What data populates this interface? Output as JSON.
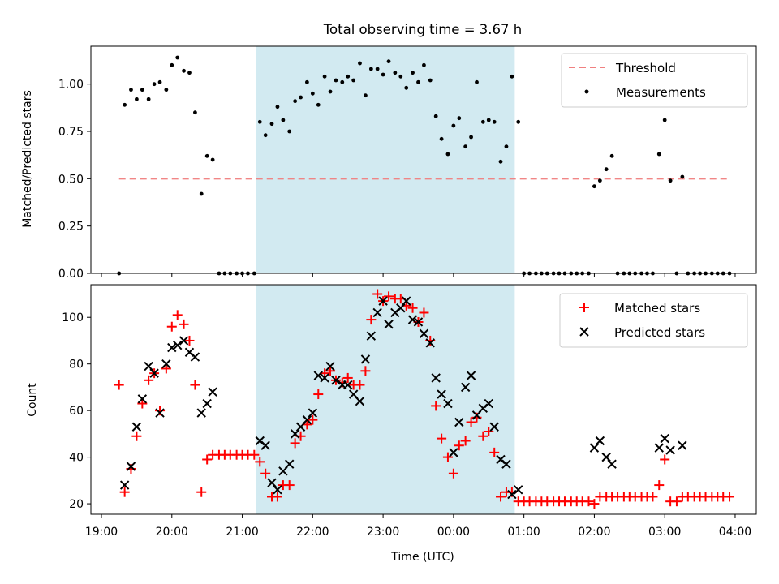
{
  "figure_title": "Total observing time = 3.67 h",
  "chart_data": [
    {
      "type": "scatter",
      "panel": "top",
      "ylabel": "Matched/Predicted stars",
      "ylim": [
        0,
        1.2
      ],
      "yticks": [
        "0.00",
        "0.25",
        "0.50",
        "0.75",
        "1.00"
      ],
      "ytick_values": [
        0,
        0.25,
        0.5,
        0.75,
        1.0
      ],
      "xlim": [
        18.85,
        28.3
      ],
      "shaded_interval": [
        21.2,
        24.87
      ],
      "shade_color": "#add8e6",
      "legend_position": "top-right",
      "threshold": {
        "name": "Threshold",
        "value": 0.5,
        "x_start": 19.25,
        "x_end": 27.9,
        "color": "#f08080"
      },
      "measurements_name": "Measurements",
      "measurements": [
        [
          19.25,
          0.0
        ],
        [
          19.33,
          0.89
        ],
        [
          19.42,
          0.97
        ],
        [
          19.5,
          0.92
        ],
        [
          19.58,
          0.97
        ],
        [
          19.67,
          0.92
        ],
        [
          19.75,
          1.0
        ],
        [
          19.83,
          1.01
        ],
        [
          19.92,
          0.97
        ],
        [
          20.0,
          1.1
        ],
        [
          20.08,
          1.14
        ],
        [
          20.17,
          1.07
        ],
        [
          20.25,
          1.06
        ],
        [
          20.33,
          0.85
        ],
        [
          20.42,
          0.42
        ],
        [
          20.5,
          0.62
        ],
        [
          20.58,
          0.6
        ],
        [
          20.67,
          0.0
        ],
        [
          20.75,
          0.0
        ],
        [
          20.83,
          0.0
        ],
        [
          20.92,
          0.0
        ],
        [
          21.0,
          0.0
        ],
        [
          21.08,
          0.0
        ],
        [
          21.17,
          0.0
        ],
        [
          21.25,
          0.8
        ],
        [
          21.33,
          0.73
        ],
        [
          21.42,
          0.79
        ],
        [
          21.5,
          0.88
        ],
        [
          21.58,
          0.81
        ],
        [
          21.67,
          0.75
        ],
        [
          21.75,
          0.91
        ],
        [
          21.83,
          0.93
        ],
        [
          21.92,
          1.01
        ],
        [
          22.0,
          0.95
        ],
        [
          22.08,
          0.89
        ],
        [
          22.17,
          1.04
        ],
        [
          22.25,
          0.96
        ],
        [
          22.33,
          1.02
        ],
        [
          22.42,
          1.01
        ],
        [
          22.5,
          1.04
        ],
        [
          22.58,
          1.02
        ],
        [
          22.67,
          1.11
        ],
        [
          22.75,
          0.94
        ],
        [
          22.83,
          1.08
        ],
        [
          22.92,
          1.08
        ],
        [
          23.0,
          1.05
        ],
        [
          23.08,
          1.12
        ],
        [
          23.17,
          1.06
        ],
        [
          23.25,
          1.04
        ],
        [
          23.33,
          0.98
        ],
        [
          23.42,
          1.06
        ],
        [
          23.5,
          1.01
        ],
        [
          23.58,
          1.1
        ],
        [
          23.67,
          1.02
        ],
        [
          23.75,
          0.83
        ],
        [
          23.83,
          0.71
        ],
        [
          23.92,
          0.63
        ],
        [
          24.0,
          0.78
        ],
        [
          24.08,
          0.82
        ],
        [
          24.17,
          0.67
        ],
        [
          24.25,
          0.72
        ],
        [
          24.33,
          1.01
        ],
        [
          24.42,
          0.8
        ],
        [
          24.5,
          0.81
        ],
        [
          24.58,
          0.8
        ],
        [
          24.67,
          0.59
        ],
        [
          24.75,
          0.67
        ],
        [
          24.83,
          1.04
        ],
        [
          24.92,
          0.8
        ],
        [
          25.0,
          0.0
        ],
        [
          25.08,
          0.0
        ],
        [
          25.17,
          0.0
        ],
        [
          25.25,
          0.0
        ],
        [
          25.33,
          0.0
        ],
        [
          25.42,
          0.0
        ],
        [
          25.5,
          0.0
        ],
        [
          25.58,
          0.0
        ],
        [
          25.67,
          0.0
        ],
        [
          25.75,
          0.0
        ],
        [
          25.83,
          0.0
        ],
        [
          25.92,
          0.0
        ],
        [
          26.0,
          0.46
        ],
        [
          26.08,
          0.49
        ],
        [
          26.17,
          0.55
        ],
        [
          26.25,
          0.62
        ],
        [
          26.33,
          0.0
        ],
        [
          26.42,
          0.0
        ],
        [
          26.5,
          0.0
        ],
        [
          26.58,
          0.0
        ],
        [
          26.67,
          0.0
        ],
        [
          26.75,
          0.0
        ],
        [
          26.83,
          0.0
        ],
        [
          26.92,
          0.63
        ],
        [
          27.0,
          0.81
        ],
        [
          27.08,
          0.49
        ],
        [
          27.17,
          0.0
        ],
        [
          27.25,
          0.51
        ],
        [
          27.33,
          0.0
        ],
        [
          27.42,
          0.0
        ],
        [
          27.5,
          0.0
        ],
        [
          27.58,
          0.0
        ],
        [
          27.67,
          0.0
        ],
        [
          27.75,
          0.0
        ],
        [
          27.83,
          0.0
        ],
        [
          27.92,
          0.0
        ]
      ]
    },
    {
      "type": "scatter",
      "panel": "bottom",
      "xlabel": "Time (UTC)",
      "ylabel": "Count",
      "ylim": [
        15.5,
        114
      ],
      "yticks": [
        "20",
        "40",
        "60",
        "80",
        "100"
      ],
      "ytick_values": [
        20,
        40,
        60,
        80,
        100
      ],
      "xlim": [
        18.85,
        28.3
      ],
      "xticks": [
        "19:00",
        "20:00",
        "21:00",
        "22:00",
        "23:00",
        "00:00",
        "01:00",
        "02:00",
        "03:00",
        "04:00"
      ],
      "xtick_values": [
        19,
        20,
        21,
        22,
        23,
        24,
        25,
        26,
        27,
        28
      ],
      "shaded_interval": [
        21.2,
        24.87
      ],
      "shade_color": "#add8e6",
      "legend_position": "top-right",
      "series": [
        {
          "name": "Matched stars",
          "marker": "plus",
          "color": "#ff0000",
          "points": [
            [
              19.25,
              71
            ],
            [
              19.33,
              25
            ],
            [
              19.42,
              35
            ],
            [
              19.5,
              49
            ],
            [
              19.58,
              63
            ],
            [
              19.67,
              73
            ],
            [
              19.75,
              76
            ],
            [
              19.83,
              60
            ],
            [
              19.92,
              78
            ],
            [
              20.0,
              96
            ],
            [
              20.08,
              101
            ],
            [
              20.17,
              97
            ],
            [
              20.25,
              90
            ],
            [
              20.33,
              71
            ],
            [
              20.42,
              25
            ],
            [
              20.5,
              39
            ],
            [
              20.58,
              41
            ],
            [
              20.67,
              41
            ],
            [
              20.75,
              41
            ],
            [
              20.83,
              41
            ],
            [
              20.92,
              41
            ],
            [
              21.0,
              41
            ],
            [
              21.08,
              41
            ],
            [
              21.17,
              41
            ],
            [
              21.25,
              38
            ],
            [
              21.33,
              33
            ],
            [
              21.42,
              23
            ],
            [
              21.5,
              23
            ],
            [
              21.58,
              28
            ],
            [
              21.67,
              28
            ],
            [
              21.75,
              46
            ],
            [
              21.83,
              49
            ],
            [
              21.92,
              54
            ],
            [
              22.0,
              56
            ],
            [
              22.08,
              67
            ],
            [
              22.17,
              76
            ],
            [
              22.25,
              77
            ],
            [
              22.33,
              73
            ],
            [
              22.42,
              72
            ],
            [
              22.5,
              74
            ],
            [
              22.58,
              71
            ],
            [
              22.67,
              71
            ],
            [
              22.75,
              77
            ],
            [
              22.83,
              99
            ],
            [
              22.92,
              110
            ],
            [
              23.0,
              107
            ],
            [
              23.08,
              109
            ],
            [
              23.17,
              108
            ],
            [
              23.25,
              108
            ],
            [
              23.33,
              105
            ],
            [
              23.42,
              104
            ],
            [
              23.5,
              98
            ],
            [
              23.58,
              102
            ],
            [
              23.67,
              90
            ],
            [
              23.75,
              62
            ],
            [
              23.83,
              48
            ],
            [
              23.92,
              40
            ],
            [
              24.0,
              33
            ],
            [
              24.08,
              45
            ],
            [
              24.17,
              47
            ],
            [
              24.25,
              55
            ],
            [
              24.33,
              57
            ],
            [
              24.42,
              49
            ],
            [
              24.5,
              51
            ],
            [
              24.58,
              42
            ],
            [
              24.67,
              23
            ],
            [
              24.75,
              25
            ],
            [
              24.83,
              25
            ],
            [
              24.92,
              21
            ],
            [
              25.0,
              21
            ],
            [
              25.08,
              21
            ],
            [
              25.17,
              21
            ],
            [
              25.25,
              21
            ],
            [
              25.33,
              21
            ],
            [
              25.42,
              21
            ],
            [
              25.5,
              21
            ],
            [
              25.58,
              21
            ],
            [
              25.67,
              21
            ],
            [
              25.75,
              21
            ],
            [
              25.83,
              21
            ],
            [
              25.92,
              21
            ],
            [
              26.0,
              20
            ],
            [
              26.08,
              23
            ],
            [
              26.17,
              23
            ],
            [
              26.25,
              23
            ],
            [
              26.33,
              23
            ],
            [
              26.42,
              23
            ],
            [
              26.5,
              23
            ],
            [
              26.58,
              23
            ],
            [
              26.67,
              23
            ],
            [
              26.75,
              23
            ],
            [
              26.83,
              23
            ],
            [
              26.92,
              28
            ],
            [
              27.0,
              39
            ],
            [
              27.08,
              21
            ],
            [
              27.17,
              21
            ],
            [
              27.25,
              23
            ],
            [
              27.33,
              23
            ],
            [
              27.42,
              23
            ],
            [
              27.5,
              23
            ],
            [
              27.58,
              23
            ],
            [
              27.67,
              23
            ],
            [
              27.75,
              23
            ],
            [
              27.83,
              23
            ],
            [
              27.92,
              23
            ]
          ]
        },
        {
          "name": "Predicted stars",
          "marker": "x",
          "color": "#000000",
          "points": [
            [
              19.33,
              28
            ],
            [
              19.42,
              36
            ],
            [
              19.5,
              53
            ],
            [
              19.58,
              65
            ],
            [
              19.67,
              79
            ],
            [
              19.75,
              76
            ],
            [
              19.83,
              59
            ],
            [
              19.92,
              80
            ],
            [
              20.0,
              87
            ],
            [
              20.08,
              88
            ],
            [
              20.17,
              90
            ],
            [
              20.25,
              85
            ],
            [
              20.33,
              83
            ],
            [
              20.42,
              59
            ],
            [
              20.5,
              63
            ],
            [
              20.58,
              68
            ],
            [
              21.25,
              47
            ],
            [
              21.33,
              45
            ],
            [
              21.42,
              29
            ],
            [
              21.5,
              26
            ],
            [
              21.58,
              34
            ],
            [
              21.67,
              37
            ],
            [
              21.75,
              50
            ],
            [
              21.83,
              53
            ],
            [
              21.92,
              56
            ],
            [
              22.0,
              59
            ],
            [
              22.08,
              75
            ],
            [
              22.17,
              74
            ],
            [
              22.25,
              79
            ],
            [
              22.33,
              73
            ],
            [
              22.42,
              71
            ],
            [
              22.5,
              71
            ],
            [
              22.58,
              67
            ],
            [
              22.67,
              64
            ],
            [
              22.75,
              82
            ],
            [
              22.83,
              92
            ],
            [
              22.92,
              102
            ],
            [
              23.0,
              107
            ],
            [
              23.08,
              97
            ],
            [
              23.17,
              102
            ],
            [
              23.25,
              104
            ],
            [
              23.33,
              107
            ],
            [
              23.42,
              99
            ],
            [
              23.5,
              98
            ],
            [
              23.58,
              93
            ],
            [
              23.67,
              89
            ],
            [
              23.75,
              74
            ],
            [
              23.83,
              67
            ],
            [
              23.92,
              63
            ],
            [
              24.0,
              42
            ],
            [
              24.08,
              55
            ],
            [
              24.17,
              70
            ],
            [
              24.25,
              75
            ],
            [
              24.33,
              58
            ],
            [
              24.42,
              61
            ],
            [
              24.5,
              63
            ],
            [
              24.58,
              53
            ],
            [
              24.67,
              39
            ],
            [
              24.75,
              37
            ],
            [
              24.83,
              24
            ],
            [
              24.92,
              26
            ],
            [
              26.0,
              44
            ],
            [
              26.08,
              47
            ],
            [
              26.17,
              40
            ],
            [
              26.25,
              37
            ],
            [
              26.92,
              44
            ],
            [
              27.0,
              48
            ],
            [
              27.08,
              43
            ],
            [
              27.25,
              45
            ]
          ]
        }
      ]
    }
  ]
}
